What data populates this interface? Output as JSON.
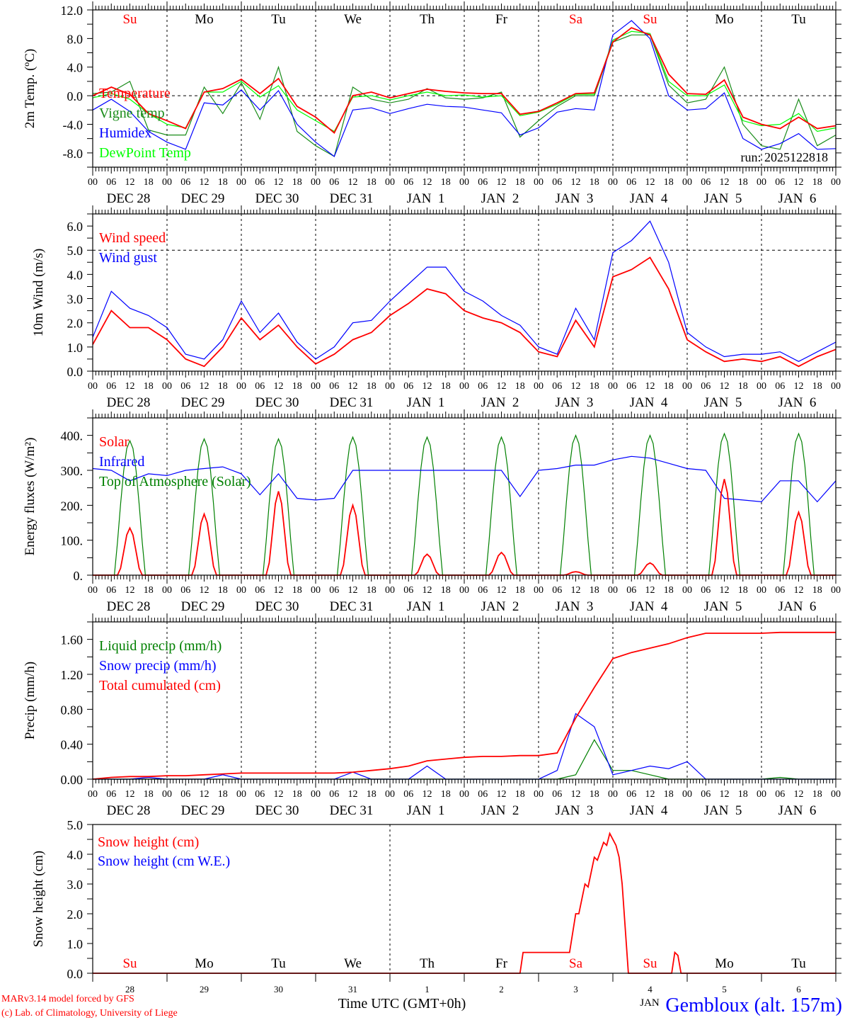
{
  "x_hour_labels": [
    "00",
    "06",
    "12",
    "18"
  ],
  "x_date_labels": [
    "DEC 28",
    "DEC 29",
    "DEC 30",
    "DEC 31",
    "JAN  1",
    "JAN  2",
    "JAN  3",
    "JAN  4",
    "JAN  5",
    "JAN  6"
  ],
  "run_label": "run: 2025122818",
  "footer": {
    "model": "MARv3.14 model forced by GFS",
    "credit": "(c) Lab. of Climatology, University of Liege",
    "xlabel": "Time UTC (GMT+0h)",
    "month": "JAN",
    "station": "Gembloux (alt. 157m)"
  },
  "colors": {
    "red": "#ff0000",
    "blue": "#0000ff",
    "darkgreen": "#1a8c1a",
    "lightgreen": "#00ff00",
    "green": "#008000"
  },
  "chart_data": [
    {
      "type": "line",
      "ylabel": "2m Temp. (ºC)",
      "ylim": [
        -10,
        12
      ],
      "yticks": [
        -8,
        -4,
        0,
        4,
        8,
        12
      ],
      "ytick_labels": [
        "-8.0",
        "-4.0",
        "0.0",
        "4.0",
        "8.0",
        "12.0"
      ],
      "ref_line": 0,
      "x_step_hours": 6,
      "day_labels": [
        {
          "label": "Su",
          "color": "#ff0000"
        },
        {
          "label": "Mo",
          "color": "#000000"
        },
        {
          "label": "Tu",
          "color": "#000000"
        },
        {
          "label": "We",
          "color": "#000000"
        },
        {
          "label": "Th",
          "color": "#000000"
        },
        {
          "label": "Fr",
          "color": "#000000"
        },
        {
          "label": "Sa",
          "color": "#ff0000"
        },
        {
          "label": "Su",
          "color": "#ff0000"
        },
        {
          "label": "Mo",
          "color": "#000000"
        },
        {
          "label": "Tu",
          "color": "#000000"
        }
      ],
      "series": [
        {
          "name": "Vigne temp",
          "color": "#1a8c1a",
          "values": [
            0.3,
            0.5,
            2.0,
            -4.8,
            -5.5,
            -5.5,
            1.2,
            -2.5,
            1.8,
            -3.3,
            4.0,
            -5,
            -7,
            -8.5,
            1.2,
            -0.5,
            -1.0,
            -0.5,
            1.0,
            -0.3,
            -0.5,
            -0.3,
            0.5,
            -5.8,
            -3.5,
            -1.5,
            0,
            0,
            7.5,
            8.5,
            8.5,
            1.5,
            -1,
            -0.5,
            4.0,
            -4,
            -7,
            -7.5,
            -0.5,
            -7,
            -5.5
          ]
        },
        {
          "name": "Humidex",
          "color": "#0000ff",
          "values": [
            -2,
            -0.5,
            -2.2,
            -5,
            -6.5,
            -7.5,
            -1,
            -1.3,
            0.8,
            -2.0,
            0.7,
            -4,
            -6.5,
            -8.5,
            -2,
            -1.7,
            -2.5,
            -1.8,
            -1.2,
            -1.5,
            -1.6,
            -2,
            -2.4,
            -5.5,
            -4.5,
            -2.3,
            -1.8,
            -2,
            8.5,
            10.5,
            8,
            0,
            -2,
            -1.8,
            0.4,
            -6,
            -7.5,
            -6.7,
            -5.3,
            -7.5,
            -7.4
          ]
        },
        {
          "name": "DewPoint Temp",
          "color": "#00ff00",
          "values": [
            -0.3,
            0.3,
            -0.5,
            -2.5,
            -4,
            -4.5,
            0.5,
            0.5,
            2,
            -0.2,
            1.4,
            -2,
            -3.5,
            -5,
            -0.2,
            0,
            -0.6,
            0,
            0.5,
            0,
            0.1,
            -0.2,
            0,
            -2.8,
            -2.3,
            -1.2,
            0.2,
            0.2,
            7.8,
            9,
            8.7,
            2,
            0,
            0,
            1.5,
            -3.5,
            -4.2,
            -4,
            -2.5,
            -5,
            -4.5
          ]
        },
        {
          "name": "Temperature",
          "color": "#ff0000",
          "values": [
            0,
            1.2,
            0.2,
            -2.5,
            -3.5,
            -4.6,
            0.5,
            1.0,
            2.3,
            0.3,
            2.4,
            -1.5,
            -3,
            -5.2,
            0,
            0.5,
            -0.3,
            0.3,
            0.9,
            0.6,
            0.4,
            0.3,
            0.3,
            -2.6,
            -2.2,
            -1,
            0.3,
            0.4,
            7.5,
            9.5,
            8.5,
            3,
            0.3,
            0.2,
            2.2,
            -3,
            -4,
            -4.6,
            -3,
            -4.6,
            -4.2
          ]
        }
      ],
      "legend_order": [
        3,
        0,
        1,
        2
      ]
    },
    {
      "type": "line",
      "ylabel": "10m Wind (m/s)",
      "ylim": [
        0,
        6.5
      ],
      "yticks": [
        0,
        1,
        2,
        3,
        4,
        5,
        6
      ],
      "ytick_labels": [
        "0.0",
        "1.0",
        "2.0",
        "3.0",
        "4.0",
        "5.0",
        "6.0"
      ],
      "ref_line": 5,
      "x_step_hours": 6,
      "series": [
        {
          "name": "Wind gust",
          "color": "#0000ff",
          "values": [
            1.4,
            3.3,
            2.6,
            2.3,
            1.8,
            0.7,
            0.5,
            1.3,
            2.9,
            1.6,
            2.4,
            1.2,
            0.5,
            1.0,
            2.0,
            2.1,
            2.9,
            3.6,
            4.3,
            4.3,
            3.3,
            2.9,
            2.3,
            1.9,
            1.0,
            0.7,
            2.6,
            1.3,
            4.9,
            5.4,
            6.2,
            4.5,
            1.6,
            1.0,
            0.6,
            0.7,
            0.7,
            0.8,
            0.4,
            0.8,
            1.2
          ]
        },
        {
          "name": "Wind speed",
          "color": "#ff0000",
          "values": [
            1.1,
            2.5,
            1.8,
            1.8,
            1.3,
            0.5,
            0.2,
            1.0,
            2.2,
            1.3,
            1.9,
            1.0,
            0.3,
            0.7,
            1.3,
            1.6,
            2.3,
            2.8,
            3.4,
            3.2,
            2.5,
            2.2,
            2.0,
            1.6,
            0.8,
            0.6,
            2.1,
            1.0,
            3.9,
            4.2,
            4.7,
            3.4,
            1.3,
            0.8,
            0.4,
            0.5,
            0.4,
            0.6,
            0.2,
            0.6,
            0.9
          ]
        }
      ],
      "legend_order": [
        1,
        0
      ]
    },
    {
      "type": "line",
      "ylabel": "Energy fluxes (W/m²)",
      "ylim": [
        0,
        450
      ],
      "yticks": [
        0,
        100,
        200,
        300,
        400
      ],
      "ytick_labels": [
        "0.",
        "100.",
        "200.",
        "300.",
        "400."
      ],
      "x_step_hours": 6,
      "series": [
        {
          "name": "Top of Atmosphere (Solar)",
          "color": "#008000",
          "daily_peak": [
            385,
            390,
            390,
            395,
            395,
            395,
            400,
            400,
            405,
            405
          ]
        },
        {
          "name": "Infrared",
          "color": "#0000ff",
          "values": [
            305,
            300,
            270,
            290,
            285,
            300,
            305,
            310,
            290,
            230,
            290,
            220,
            215,
            220,
            300,
            300,
            300,
            300,
            300,
            300,
            300,
            300,
            300,
            225,
            300,
            305,
            315,
            315,
            330,
            340,
            335,
            320,
            305,
            300,
            220,
            215,
            210,
            270,
            270,
            210,
            270
          ]
        },
        {
          "name": "Solar",
          "color": "#ff0000",
          "daily_peak": [
            135,
            175,
            240,
            200,
            60,
            65,
            10,
            35,
            275,
            180
          ]
        }
      ],
      "legend_order": [
        2,
        1,
        0
      ]
    },
    {
      "type": "line",
      "ylabel": "Precip (mm/h)",
      "ylim": [
        0,
        1.8
      ],
      "yticks": [
        0,
        0.4,
        0.8,
        1.2,
        1.6
      ],
      "ytick_labels": [
        "0.00",
        "0.40",
        "0.80",
        "1.20",
        "1.60"
      ],
      "x_step_hours": 6,
      "series": [
        {
          "name": "Liquid precip (mm/h)",
          "color": "#008000",
          "values": [
            0,
            0,
            0,
            0,
            0,
            0,
            0,
            0,
            0,
            0,
            0,
            0,
            0,
            0,
            0,
            0,
            0,
            0,
            0,
            0,
            0,
            0,
            0,
            0,
            0,
            0,
            0.05,
            0.45,
            0.1,
            0.1,
            0.05,
            0,
            0,
            0,
            0,
            0,
            0,
            0.02,
            0,
            0,
            0
          ]
        },
        {
          "name": "Snow precip (mm/h)",
          "color": "#0000ff",
          "values": [
            0,
            0,
            0,
            0.02,
            0,
            0,
            0,
            0.05,
            0,
            0,
            0,
            0,
            0,
            0,
            0.08,
            0,
            0,
            0,
            0.15,
            0,
            0,
            0,
            0,
            0,
            0,
            0.1,
            0.75,
            0.6,
            0.05,
            0.1,
            0.15,
            0.12,
            0.2,
            0,
            0,
            0,
            0,
            0,
            0,
            0,
            0
          ]
        },
        {
          "name": "Total cumulated (cm)",
          "color": "#ff0000",
          "values": [
            0,
            0.02,
            0.03,
            0.03,
            0.04,
            0.04,
            0.05,
            0.06,
            0.07,
            0.07,
            0.07,
            0.07,
            0.07,
            0.07,
            0.08,
            0.1,
            0.12,
            0.15,
            0.21,
            0.23,
            0.25,
            0.26,
            0.26,
            0.27,
            0.27,
            0.3,
            0.7,
            1.05,
            1.38,
            1.45,
            1.5,
            1.55,
            1.62,
            1.67,
            1.67,
            1.67,
            1.67,
            1.68,
            1.68,
            1.68,
            1.68
          ]
        }
      ],
      "legend_order": [
        0,
        1,
        2
      ]
    },
    {
      "type": "line",
      "ylabel": "Snow height (cm)",
      "ylim": [
        0,
        5
      ],
      "yticks": [
        0,
        1,
        2,
        3,
        4,
        5
      ],
      "ytick_labels": [
        "0.0",
        "1.0",
        "2.0",
        "3.0",
        "4.0",
        "5.0"
      ],
      "x_dates": [
        "28",
        "29",
        "30",
        "31",
        "1",
        "2",
        "3",
        "4",
        "5",
        "6"
      ],
      "day_labels": [
        {
          "label": "Su",
          "color": "#ff0000"
        },
        {
          "label": "Mo",
          "color": "#000000"
        },
        {
          "label": "Tu",
          "color": "#000000"
        },
        {
          "label": "We",
          "color": "#000000"
        },
        {
          "label": "Th",
          "color": "#000000"
        },
        {
          "label": "Fr",
          "color": "#000000"
        },
        {
          "label": "Sa",
          "color": "#ff0000"
        },
        {
          "label": "Su",
          "color": "#ff0000"
        },
        {
          "label": "Mo",
          "color": "#000000"
        },
        {
          "label": "Tu",
          "color": "#000000"
        }
      ],
      "series": [
        {
          "name": "Snow height (cm)",
          "color": "#ff0000",
          "points_hours": [
            [
              0,
              0
            ],
            [
              138,
              0
            ],
            [
              139,
              0.7
            ],
            [
              154,
              0.7
            ],
            [
              156,
              2.0
            ],
            [
              157,
              2.0
            ],
            [
              159,
              3.0
            ],
            [
              160,
              2.9
            ],
            [
              162,
              3.9
            ],
            [
              163,
              3.8
            ],
            [
              165,
              4.4
            ],
            [
              166,
              4.3
            ],
            [
              167,
              4.7
            ],
            [
              169,
              4.3
            ],
            [
              170,
              3.9
            ],
            [
              171,
              3.0
            ],
            [
              172,
              1.5
            ],
            [
              173,
              0
            ],
            [
              187,
              0
            ],
            [
              188,
              0.7
            ],
            [
              189,
              0.6
            ],
            [
              190,
              0
            ],
            [
              240,
              0
            ]
          ]
        },
        {
          "name": "Snow height (cm W.E.)",
          "color": "#0000ff",
          "points_hours": []
        }
      ],
      "legend_order": [
        0,
        1
      ]
    }
  ]
}
